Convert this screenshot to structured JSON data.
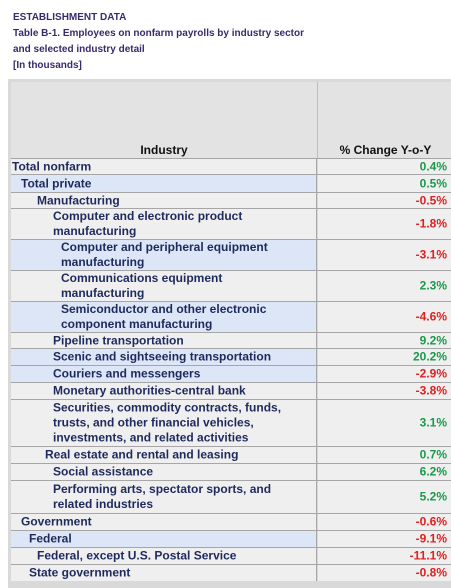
{
  "caption": {
    "line1": "ESTABLISHMENT DATA",
    "line2": "Table B-1. Employees on nonfarm payrolls by industry sector",
    "line3": "and selected industry detail",
    "line4": "[In thousands]"
  },
  "table": {
    "header_industry": "Industry",
    "header_change": "% Change Y-o-Y",
    "rows": [
      {
        "industry": "Total nonfarm",
        "change": "0.4%"
      },
      {
        "industry": "Total private",
        "change": "0.5%"
      },
      {
        "industry": "Manufacturing",
        "change": "-0.5%"
      },
      {
        "industry_l1": "Computer and electronic product",
        "industry_l2": "manufacturing",
        "change": "-1.8%"
      },
      {
        "industry_l1": "Computer and peripheral equipment",
        "industry_l2": "manufacturing",
        "change": "-3.1%"
      },
      {
        "industry_l1": "Communications equipment",
        "industry_l2": "manufacturing",
        "change": "2.3%"
      },
      {
        "industry_l1": "Semiconductor and other electronic",
        "industry_l2": "component manufacturing",
        "change": "-4.6%"
      },
      {
        "industry": "Pipeline transportation",
        "change": "9.2%"
      },
      {
        "industry": "Scenic and sightseeing transportation",
        "change": "20.2%"
      },
      {
        "industry": "Couriers and messengers",
        "change": "-2.9%"
      },
      {
        "industry": "Monetary authorities-central bank",
        "change": "-3.8%"
      },
      {
        "industry_l1": "Securities, commodity contracts, funds,",
        "industry_l2": "trusts, and other financial vehicles,",
        "industry_l3": "investments, and related activities",
        "change": "3.1%"
      },
      {
        "industry": "Real estate and rental and leasing",
        "change": "0.7%"
      },
      {
        "industry": "Social assistance",
        "change": "6.2%"
      },
      {
        "industry_l1": "Performing arts, spectator sports, and",
        "industry_l2": "related industries",
        "change": "5.2%"
      },
      {
        "industry": "Government",
        "change": "-0.6%"
      },
      {
        "industry": "Federal",
        "change": "-9.1%"
      },
      {
        "industry": "Federal, except U.S. Postal Service",
        "change": "-11.1%"
      },
      {
        "industry": "State government",
        "change": "-0.8%"
      }
    ]
  },
  "colors": {
    "positive": "#1a9a4a",
    "negative": "#e02020",
    "highlight_row": "#dce6f7",
    "caption": "#3a2a6a"
  }
}
